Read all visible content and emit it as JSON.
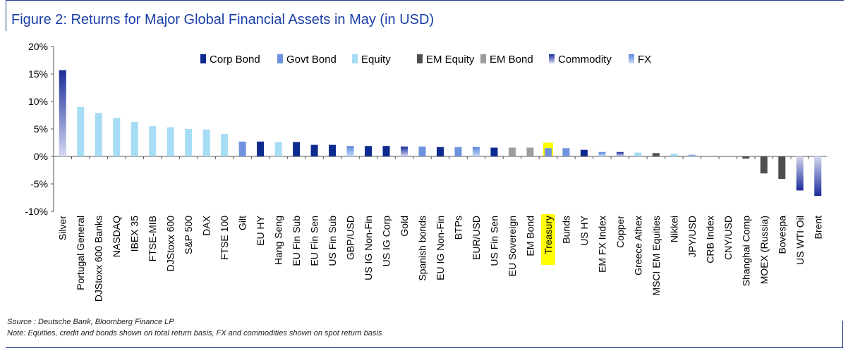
{
  "figure": {
    "title": "Figure 2: Returns for Major Global Financial Assets in May (in USD)",
    "source": "Source : Deutsche Bank, Bloomberg Finance LP",
    "note": "Note: Equities, credit and bonds shown on total return basis, FX and commodities shown on spot return basis"
  },
  "colors": {
    "Corp Bond": "#0d2a8f",
    "Govt Bond": "#6f93de",
    "Equity": "#a6dcf4",
    "EM Equity": "#4f4f4f",
    "EM Bond": "#9d9d9d",
    "Commodity": [
      "#1a2c9a",
      "#d4d8f0"
    ],
    "FX": [
      "#5b86dc",
      "#c6dcf6"
    ],
    "highlight": "#ffff00",
    "axis": "#555555",
    "frame": "#1f3b8c"
  },
  "chart_data": {
    "type": "bar",
    "title": "Figure 2: Returns for Major Global Financial Assets in May (in USD)",
    "xlabel": "",
    "ylabel": "",
    "ylim": [
      -10,
      20
    ],
    "yticks": [
      -10,
      -5,
      0,
      5,
      10,
      15,
      20
    ],
    "ytick_format": "percent",
    "grid": false,
    "legend_position": "top",
    "legend": [
      "Corp Bond",
      "Govt Bond",
      "Equity",
      "EM Equity",
      "EM Bond",
      "Commodity",
      "FX"
    ],
    "highlighted_category": "Treasury",
    "categories": [
      "Silver",
      "Portugal General",
      "DJStoxx 600 Banks",
      "NASDAQ",
      "IBEX 35",
      "FTSE-MIB",
      "DJStoxx 600",
      "S&P 500",
      "DAX",
      "FTSE 100",
      "Gilt",
      "EU HY",
      "Hang Seng",
      "EU Fin Sub",
      "EU Fin Sen",
      "US Fin Sub",
      "GBP/USD",
      "US IG Non-Fin",
      "US IG Corp",
      "Gold",
      "Spanish bonds",
      "EU IG Non-Fin",
      "BTPs",
      "EUR/USD",
      "US Fin Sen",
      "EU Sovereign",
      "EM Bond",
      "Treasury",
      "Bunds",
      "US HY",
      "EM FX Index",
      "Copper",
      "Greece Athex",
      "MSCI EM Equities",
      "Nikkei",
      "JPY/USD",
      "CRB Index",
      "CNY/USD",
      "Shanghai Comp",
      "MOEX (Russia)",
      "Bovespa",
      "US WTI Oil",
      "Brent"
    ],
    "groups": [
      "Commodity",
      "Equity",
      "Equity",
      "Equity",
      "Equity",
      "Equity",
      "Equity",
      "Equity",
      "Equity",
      "Equity",
      "Govt Bond",
      "Corp Bond",
      "Equity",
      "Corp Bond",
      "Corp Bond",
      "Corp Bond",
      "FX",
      "Corp Bond",
      "Corp Bond",
      "Commodity",
      "Govt Bond",
      "Corp Bond",
      "Govt Bond",
      "FX",
      "Corp Bond",
      "EM Bond",
      "EM Bond",
      "Govt Bond",
      "Govt Bond",
      "Corp Bond",
      "FX",
      "Commodity",
      "Equity",
      "EM Equity",
      "Equity",
      "FX",
      "Commodity",
      "FX",
      "EM Equity",
      "EM Equity",
      "EM Equity",
      "Commodity",
      "Commodity"
    ],
    "values": [
      15.7,
      9.0,
      7.9,
      7.0,
      6.3,
      5.5,
      5.3,
      5.0,
      4.9,
      4.1,
      2.7,
      2.7,
      2.6,
      2.6,
      2.1,
      2.1,
      1.9,
      1.9,
      1.9,
      1.8,
      1.8,
      1.7,
      1.7,
      1.7,
      1.6,
      1.6,
      1.6,
      1.5,
      1.5,
      1.2,
      0.8,
      0.8,
      0.7,
      0.6,
      0.5,
      0.3,
      0.0,
      0.0,
      -0.4,
      -3.1,
      -4.1,
      -6.2,
      -7.2
    ]
  }
}
